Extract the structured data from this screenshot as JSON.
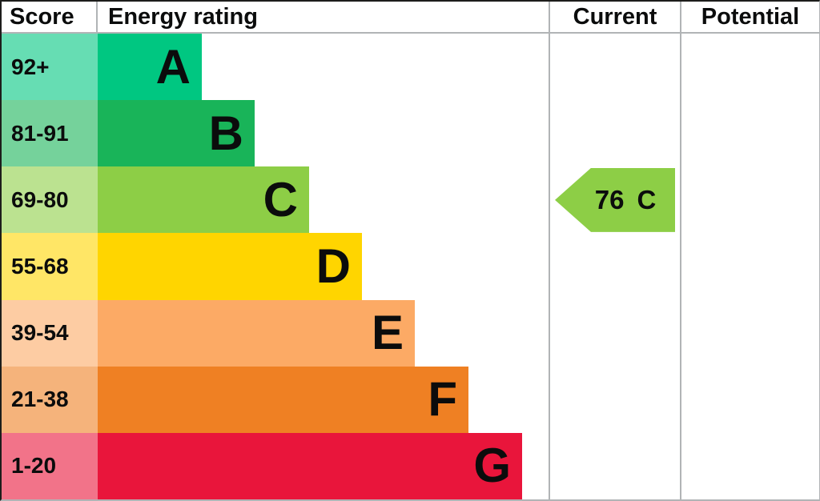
{
  "header": {
    "score": "Score",
    "rating": "Energy rating",
    "current": "Current",
    "potential": "Potential"
  },
  "chart_data": {
    "type": "bar",
    "description": "Energy efficiency rating chart (EPC style ladder)",
    "columns": [
      "Score",
      "Energy rating",
      "Current",
      "Potential"
    ],
    "bands": [
      {
        "letter": "A",
        "score": "92+",
        "color": "#00c781",
        "score_color": "#66ddb3",
        "bar_px": "130px"
      },
      {
        "letter": "B",
        "score": "81-91",
        "color": "#19b459",
        "score_color": "#75d29b",
        "bar_px": "196px"
      },
      {
        "letter": "C",
        "score": "69-80",
        "color": "#8dce46",
        "score_color": "#bbe290",
        "bar_px": "264px"
      },
      {
        "letter": "D",
        "score": "55-68",
        "color": "#ffd500",
        "score_color": "#ffe666",
        "bar_px": "330px"
      },
      {
        "letter": "E",
        "score": "39-54",
        "color": "#fcaa65",
        "score_color": "#fdcca3",
        "bar_px": "396px"
      },
      {
        "letter": "F",
        "score": "21-38",
        "color": "#ef8023",
        "score_color": "#f5b37b",
        "bar_px": "463px"
      },
      {
        "letter": "G",
        "score": "1-20",
        "color": "#e9153b",
        "score_color": "#f27389",
        "bar_px": "530px"
      }
    ],
    "current": {
      "value": "76",
      "band": "C",
      "color": "#8dce46",
      "row_index": 2
    },
    "potential": {
      "value": "",
      "band": ""
    }
  }
}
